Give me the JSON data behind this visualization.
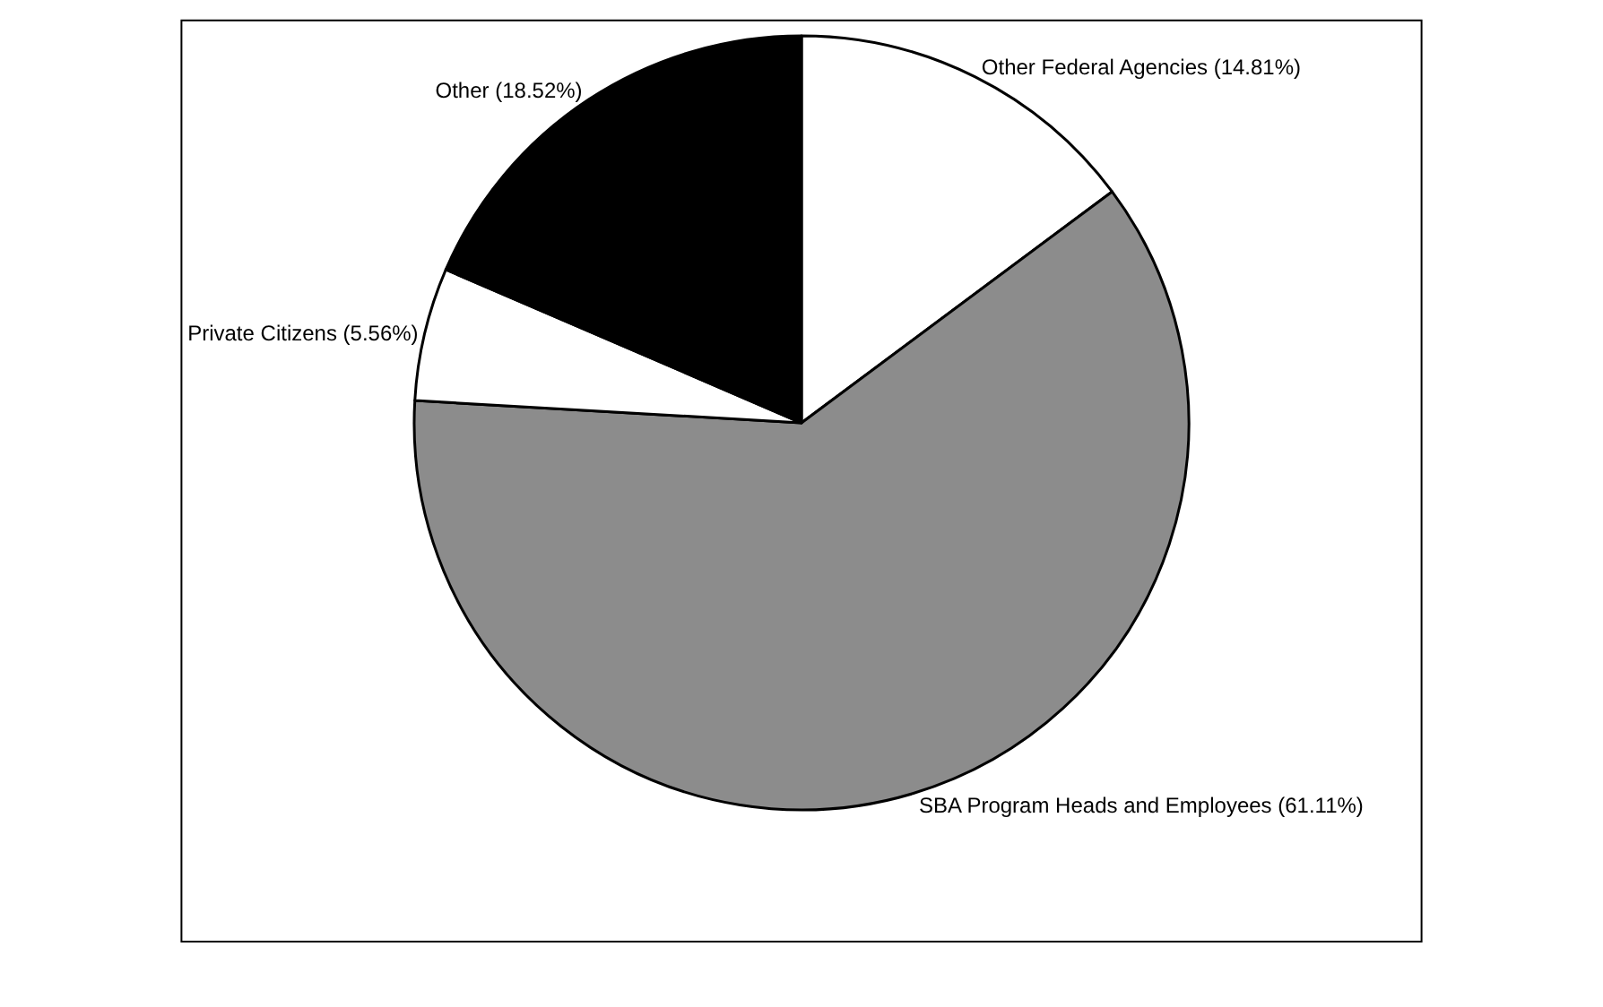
{
  "chart_data": {
    "type": "pie",
    "categories": [
      "Other Federal Agencies",
      "SBA Program Heads and Employees",
      "Private Citizens",
      "Other"
    ],
    "values": [
      14.81,
      61.11,
      5.56,
      18.52
    ],
    "value_labels": [
      "(14.81%)",
      "(61.11%)",
      "(5.56%)",
      "(18.52%)"
    ],
    "colors": [
      "#ffffff",
      "#8c8c8c",
      "#ffffff",
      "#000000"
    ],
    "legend": false
  }
}
